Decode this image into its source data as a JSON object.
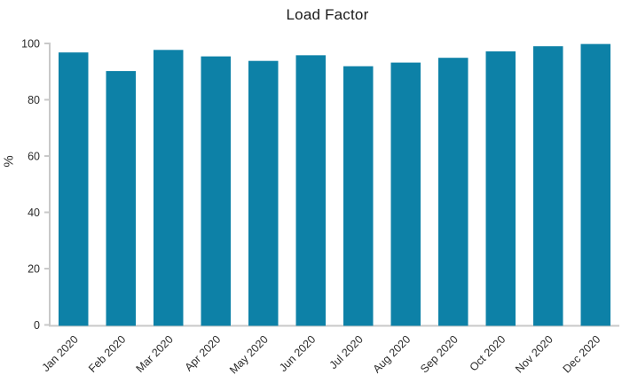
{
  "chart_data": {
    "type": "bar",
    "title": "Load Factor",
    "ylabel": "%",
    "xlabel": "",
    "legend": false,
    "grid": false,
    "background": "#ffffff",
    "bar_color": "#0d81a7",
    "axis_color": "#c9c9c9",
    "tick_text_color": "#2b2b2b",
    "title_color": "#1a1a1a",
    "ylim": [
      0,
      100
    ],
    "yticks": [
      0,
      20,
      40,
      60,
      80,
      100
    ],
    "categories": [
      "Jan 2020",
      "Feb 2020",
      "Mar 2020",
      "Apr 2020",
      "May 2020",
      "Jun 2020",
      "Jul 2020",
      "Aug 2020",
      "Sep 2020",
      "Oct 2020",
      "Nov 2020",
      "Dec 2020"
    ],
    "values": [
      96.8,
      90.2,
      97.7,
      95.4,
      93.8,
      95.8,
      91.9,
      93.2,
      94.9,
      97.2,
      99.0,
      99.8
    ]
  }
}
